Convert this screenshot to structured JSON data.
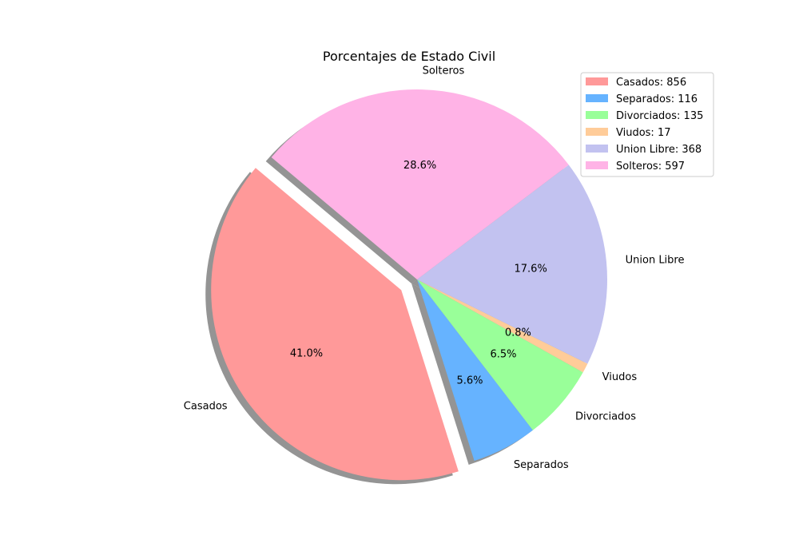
{
  "chart_data": {
    "type": "pie",
    "title": "Porcentajes de Estado Civil",
    "slices": [
      {
        "label": "Casados",
        "value": 856,
        "percent_label": "41.0%",
        "legend": "Casados: 856",
        "color": "#ff9999",
        "exploded": true
      },
      {
        "label": "Separados",
        "value": 116,
        "percent_label": "5.6%",
        "legend": "Separados: 116",
        "color": "#66b3ff",
        "exploded": false
      },
      {
        "label": "Divorciados",
        "value": 135,
        "percent_label": "6.5%",
        "legend": "Divorciados: 135",
        "color": "#99ff99",
        "exploded": false
      },
      {
        "label": "Viudos",
        "value": 17,
        "percent_label": "0.8%",
        "legend": "Viudos: 17",
        "color": "#ffcc99",
        "exploded": false
      },
      {
        "label": "Union Libre",
        "value": 368,
        "percent_label": "17.6%",
        "legend": "Union Libre: 368",
        "color": "#c2c2f0",
        "exploded": false
      },
      {
        "label": "Solteros",
        "value": 597,
        "percent_label": "28.6%",
        "legend": "Solteros: 597",
        "color": "#ffb3e6",
        "exploded": false
      }
    ],
    "start_angle_deg": 140,
    "counterclockwise": true,
    "shadow": true,
    "legend_position": "top-right"
  }
}
